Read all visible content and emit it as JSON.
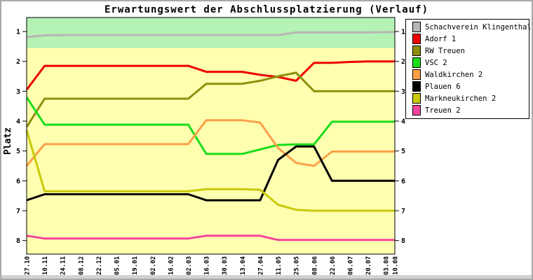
{
  "chart_data": {
    "type": "line",
    "title": "Erwartungswert der Abschlussplatzierung (Verlauf)",
    "ylabel": "Platz",
    "y_ticks": [
      "1",
      "2",
      "3",
      "4",
      "5",
      "6",
      "7",
      "8"
    ],
    "y_range": [
      0.53,
      8.45
    ],
    "y_inverted": true,
    "grid": false,
    "legend_position": "outside-top-right",
    "x_labels": [
      "27.10",
      "10.11",
      "24.11",
      "08.12",
      "22.12",
      "05.01",
      "19.01",
      "02.02",
      "16.02",
      "02.03",
      "16.03",
      "30.03",
      "13.04",
      "27.04",
      "11.05",
      "25.05",
      "08.06",
      "22.06",
      "06.07",
      "20.07",
      "03.08",
      "10.08"
    ],
    "x_last_interval_half": true,
    "background_bands": [
      {
        "from_rank": 0.53,
        "to_rank": 1.55,
        "color": "#b5f2b5"
      },
      {
        "from_rank": 1.55,
        "to_rank": 8.45,
        "color": "#ffffb0"
      }
    ],
    "series": [
      {
        "name": "Schachverein Klingenthal",
        "color": "#b6b6b6",
        "values": [
          1.19,
          1.13,
          1.12,
          1.12,
          1.12,
          1.12,
          1.12,
          1.12,
          1.12,
          1.12,
          1.12,
          1.12,
          1.12,
          1.12,
          1.12,
          1.03,
          1.03,
          1.03,
          1.03,
          1.03,
          1.02,
          1.02
        ]
      },
      {
        "name": "Adorf 1",
        "color": "#ee0000",
        "values": [
          2.95,
          2.15,
          2.15,
          2.15,
          2.15,
          2.15,
          2.15,
          2.15,
          2.15,
          2.15,
          2.35,
          2.35,
          2.35,
          2.45,
          2.52,
          2.65,
          2.05,
          2.05,
          2.02,
          2.0,
          2.0,
          2.0
        ]
      },
      {
        "name": "RW Treuen",
        "color": "#8f8f0e",
        "values": [
          4.2,
          3.25,
          3.25,
          3.25,
          3.25,
          3.25,
          3.25,
          3.25,
          3.25,
          3.25,
          2.75,
          2.75,
          2.75,
          2.65,
          2.5,
          2.38,
          3.0,
          3.0,
          3.0,
          3.0,
          3.0,
          3.0
        ]
      },
      {
        "name": "VSC 2",
        "color": "#1bdd1b",
        "values": [
          3.2,
          4.12,
          4.12,
          4.12,
          4.12,
          4.12,
          4.12,
          4.12,
          4.12,
          4.12,
          5.1,
          5.1,
          5.1,
          4.95,
          4.8,
          4.78,
          4.78,
          4.02,
          4.02,
          4.02,
          4.02,
          4.02
        ]
      },
      {
        "name": "Waldkirchen 2",
        "color": "#fca048",
        "values": [
          5.5,
          4.77,
          4.77,
          4.77,
          4.77,
          4.77,
          4.77,
          4.77,
          4.77,
          4.77,
          3.97,
          3.97,
          3.97,
          4.05,
          4.9,
          5.4,
          5.5,
          5.02,
          5.02,
          5.02,
          5.02,
          5.02
        ]
      },
      {
        "name": "Plauen 6",
        "color": "#000000",
        "values": [
          6.65,
          6.45,
          6.45,
          6.45,
          6.45,
          6.45,
          6.45,
          6.45,
          6.45,
          6.45,
          6.65,
          6.65,
          6.65,
          6.65,
          5.3,
          4.85,
          4.85,
          6.0,
          6.0,
          6.0,
          6.0,
          6.0
        ]
      },
      {
        "name": "Markneukirchen 2",
        "color": "#c9c90a",
        "values": [
          4.3,
          6.35,
          6.35,
          6.35,
          6.35,
          6.35,
          6.35,
          6.35,
          6.35,
          6.35,
          6.28,
          6.28,
          6.28,
          6.3,
          6.8,
          6.97,
          7.0,
          7.0,
          7.0,
          7.0,
          7.0,
          7.0
        ]
      },
      {
        "name": "Treuen 2",
        "color": "#f4459c",
        "values": [
          7.84,
          7.93,
          7.93,
          7.93,
          7.93,
          7.93,
          7.93,
          7.93,
          7.93,
          7.93,
          7.84,
          7.84,
          7.84,
          7.84,
          7.98,
          7.98,
          7.98,
          7.98,
          7.98,
          7.98,
          7.98,
          7.98
        ]
      }
    ]
  }
}
